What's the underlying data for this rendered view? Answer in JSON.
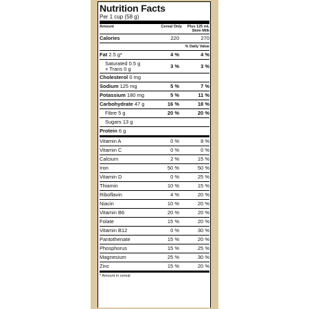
{
  "title": "Nutrition Facts",
  "serving": "Per 1 cup (58 g)",
  "header": {
    "amount": "Amount",
    "col1": "Cereal Only",
    "col2": "Plus 125 mL Skim Milk"
  },
  "calories": {
    "label": "Calories",
    "v1": "220",
    "v2": "270"
  },
  "dv_label": "% Daily Value",
  "nutrients": [
    {
      "bold": "Fat",
      "rest": " 2.5 g*",
      "v1": "4 %",
      "v2": "4 %"
    },
    {
      "bold": "",
      "rest": "Saturated 0.5 g",
      "rest2": "+ Trans 0 g",
      "v1": "3 %",
      "v2": "3 %"
    },
    {
      "bold": "Cholesterol",
      "rest": " 0 mg",
      "v1": "",
      "v2": ""
    },
    {
      "bold": "Sodium",
      "rest": " 125 mg",
      "v1": "5 %",
      "v2": "7 %"
    },
    {
      "bold": "Potassium",
      "rest": " 180 mg",
      "v1": "5 %",
      "v2": "11 %"
    },
    {
      "bold": "Carbohydrate",
      "rest": " 47 g",
      "v1": "16 %",
      "v2": "18 %"
    },
    {
      "bold": "",
      "rest": "Fibre 5 g",
      "v1": "20 %",
      "v2": "20 %"
    },
    {
      "bold": "",
      "rest": "Sugars 13 g",
      "v1": "",
      "v2": ""
    },
    {
      "bold": "Protein",
      "rest": " 6 g",
      "v1": "",
      "v2": ""
    }
  ],
  "vitamins": [
    {
      "name": "Vitamin A",
      "v1": "0 %",
      "v2": "8 %"
    },
    {
      "name": "Vitamin C",
      "v1": "0 %",
      "v2": "0 %"
    },
    {
      "name": "Calcium",
      "v1": "2 %",
      "v2": "15 %"
    },
    {
      "name": "Iron",
      "v1": "50 %",
      "v2": "50 %"
    },
    {
      "name": "Vitamin D",
      "v1": "0 %",
      "v2": "25 %"
    },
    {
      "name": "Thiamin",
      "v1": "10 %",
      "v2": "15 %"
    },
    {
      "name": "Riboflavin",
      "v1": "4 %",
      "v2": "20 %"
    },
    {
      "name": "Niacin",
      "v1": "10 %",
      "v2": "20 %"
    },
    {
      "name": "Vitamin B6",
      "v1": "20 %",
      "v2": "20 %"
    },
    {
      "name": "Folate",
      "v1": "15 %",
      "v2": "20 %"
    },
    {
      "name": "Vitamin B12",
      "v1": "0 %",
      "v2": "30 %"
    },
    {
      "name": "Pantothenate",
      "v1": "15 %",
      "v2": "20 %"
    },
    {
      "name": "Phosphorus",
      "v1": "15 %",
      "v2": "25 %"
    },
    {
      "name": "Magnesium",
      "v1": "25 %",
      "v2": "30 %"
    },
    {
      "name": "Zinc",
      "v1": "15 %",
      "v2": "20 %"
    }
  ],
  "footnote": "* Amount in cereal"
}
